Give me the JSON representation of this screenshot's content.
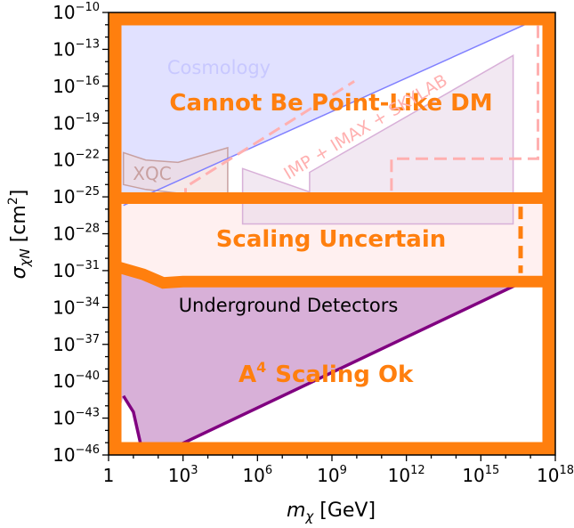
{
  "chart_data": {
    "type": "area",
    "xlabel_sym": "m",
    "xlabel_sub": "χ",
    "xlabel_unit": " [GeV]",
    "ylabel_sym": "σ",
    "ylabel_sub": "χN",
    "ylabel_unit": " [cm",
    "ylabel_unit_sup": "2",
    "ylabel_unit_end": "]",
    "x_scale": "log",
    "y_scale": "log",
    "xlim_exp": [
      0,
      18
    ],
    "ylim_exp": [
      -46,
      -10
    ],
    "x_ticks": [
      {
        "exp": 0,
        "base": "1",
        "sup": ""
      },
      {
        "exp": 3,
        "base": "10",
        "sup": "3"
      },
      {
        "exp": 6,
        "base": "10",
        "sup": "6"
      },
      {
        "exp": 9,
        "base": "10",
        "sup": "9"
      },
      {
        "exp": 12,
        "base": "10",
        "sup": "12"
      },
      {
        "exp": 15,
        "base": "10",
        "sup": "15"
      },
      {
        "exp": 18,
        "base": "10",
        "sup": "18"
      }
    ],
    "y_ticks": [
      {
        "exp": -10,
        "sup": "−10"
      },
      {
        "exp": -13,
        "sup": "−13"
      },
      {
        "exp": -16,
        "sup": "−16"
      },
      {
        "exp": -19,
        "sup": "−19"
      },
      {
        "exp": -22,
        "sup": "−22"
      },
      {
        "exp": -25,
        "sup": "−25"
      },
      {
        "exp": -28,
        "sup": "−28"
      },
      {
        "exp": -31,
        "sup": "−31"
      },
      {
        "exp": -34,
        "sup": "−34"
      },
      {
        "exp": -37,
        "sup": "−37"
      },
      {
        "exp": -40,
        "sup": "−40"
      },
      {
        "exp": -43,
        "sup": "−43"
      },
      {
        "exp": -46,
        "sup": "−46"
      }
    ],
    "regions": [
      {
        "name": "Cosmology",
        "color": "#c8c8ff",
        "boundary_log": [
          [
            0.6,
            -25.7
          ],
          [
            17.2,
            -10.6
          ]
        ]
      },
      {
        "name": "XQC",
        "color": "#c8a0a0",
        "boundary_log": [
          [
            0.6,
            -24.0
          ],
          [
            0.6,
            -21.4
          ],
          [
            1.5,
            -22.0
          ],
          [
            2.8,
            -22.2
          ],
          [
            4.8,
            -21.0
          ],
          [
            4.8,
            -24.8
          ],
          [
            3.2,
            -24.8
          ],
          [
            1.5,
            -24.4
          ]
        ]
      },
      {
        "name": "IMP + IMAX + SKYLAB",
        "color": "#ffb0b0",
        "dashed_log": [
          [
            3.1,
            -25.3
          ],
          [
            3.1,
            -24.2
          ],
          [
            9.9,
            -15.6
          ]
        ],
        "dashed2_log": [
          [
            11.4,
            -24.5
          ],
          [
            11.4,
            -21.9
          ],
          [
            17.3,
            -21.9
          ],
          [
            17.3,
            -10.8
          ],
          [
            16.3,
            -10.8
          ]
        ]
      },
      {
        "name": "Underground Detectors",
        "color": "#d8b0d8",
        "edge_color": "#800080",
        "limit_log": [
          [
            0.6,
            -41.2
          ],
          [
            1.0,
            -42.5
          ],
          [
            1.3,
            -45.2
          ],
          [
            2.0,
            -46.0
          ],
          [
            16.6,
            -32.0
          ]
        ]
      }
    ],
    "annotations": [
      {
        "text": "Cosmology",
        "color": "#c8c8ff"
      },
      {
        "text": "Cannot Be Point-Like DM",
        "color": "#ff7f0e"
      },
      {
        "text": "XQC",
        "color": "#c8a0a0"
      },
      {
        "text": "IMP + IMAX + SKYLAB",
        "color": "#ffb0b0"
      },
      {
        "text": "Scaling Uncertain",
        "color": "#ff7f0e"
      },
      {
        "text": "Underground Detectors",
        "color": "#000000"
      },
      {
        "text": "A",
        "sup": "4",
        "text2": "Scaling Ok",
        "color": "#ff7f0e"
      }
    ],
    "band_boundaries_log": {
      "upper_band": -25.1,
      "lower_band_left": -30.5,
      "lower_band_right": -31.9
    },
    "grid": false,
    "legend": "none"
  }
}
